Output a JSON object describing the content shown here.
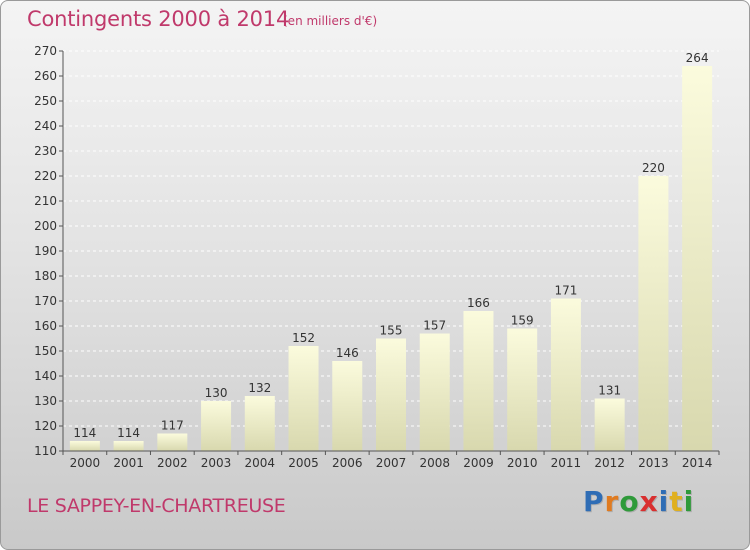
{
  "header": {
    "title": "Contingents 2000 à 2014",
    "subtitle": "(en milliers d'€)"
  },
  "footer": {
    "place": "LE SAPPEY-EN-CHARTREUSE",
    "logo_letters": [
      {
        "ch": "P",
        "color": "#2f6db5"
      },
      {
        "ch": "r",
        "color": "#e07b20"
      },
      {
        "ch": "o",
        "color": "#2f9a3a"
      },
      {
        "ch": "x",
        "color": "#d92f2f"
      },
      {
        "ch": "i",
        "color": "#2f6db5"
      },
      {
        "ch": "t",
        "color": "#e0b020"
      },
      {
        "ch": "i",
        "color": "#2f9a3a"
      }
    ]
  },
  "chart_data": {
    "type": "bar",
    "categories": [
      "2000",
      "2001",
      "2002",
      "2003",
      "2004",
      "2005",
      "2006",
      "2007",
      "2008",
      "2009",
      "2010",
      "2011",
      "2012",
      "2013",
      "2014"
    ],
    "values": [
      114,
      114,
      117,
      130,
      132,
      152,
      146,
      155,
      157,
      166,
      159,
      171,
      131,
      220,
      264
    ],
    "ylim": [
      110,
      270
    ],
    "yticks": [
      110,
      120,
      130,
      140,
      150,
      160,
      170,
      180,
      190,
      200,
      210,
      220,
      230,
      240,
      250,
      260,
      270
    ],
    "grid": true,
    "bar_color_top": "#fbfbdd",
    "bar_color_bottom": "#d8d8ae"
  }
}
